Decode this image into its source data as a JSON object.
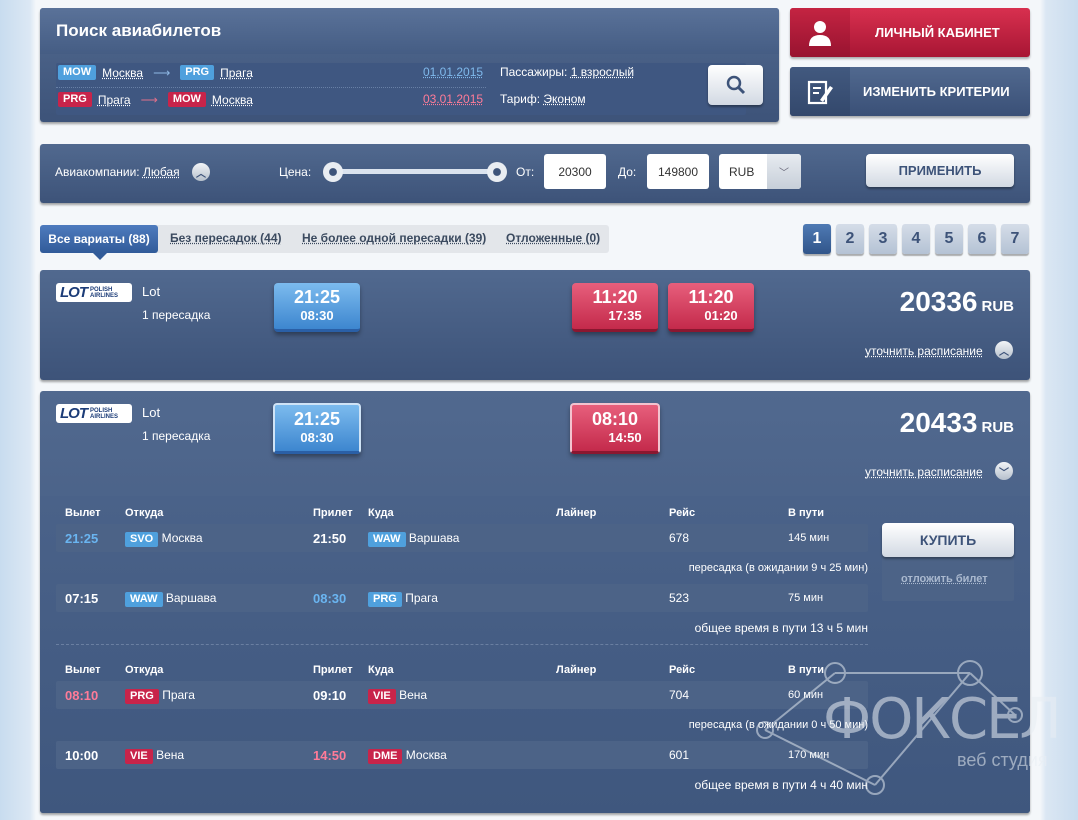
{
  "search": {
    "title": "Поиск авиабилетов",
    "leg1": {
      "from_code": "MOW",
      "from": "Москва",
      "to_code": "PRG",
      "to": "Прага",
      "date": "01.01.2015"
    },
    "leg2": {
      "from_code": "PRG",
      "from": "Прага",
      "to_code": "MOW",
      "to": "Москва",
      "date": "03.01.2015"
    },
    "passengers_label": "Пассажиры:",
    "passengers_value": "1 взрослый",
    "tariff_label": "Тариф:",
    "tariff_value": "Эконом"
  },
  "actions": {
    "cabinet": "ЛИЧНЫЙ КАБИНЕТ",
    "change": "ИЗМЕНИТЬ КРИТЕРИИ"
  },
  "filter": {
    "airlines_label": "Авиакомпании:",
    "airlines_value": "Любая",
    "price_label": "Цена:",
    "from_label": "От:",
    "from_value": "20300",
    "to_label": "До:",
    "to_value": "149800",
    "currency": "RUB",
    "apply": "ПРИМЕНИТЬ",
    "slider_min_fraction": 0,
    "slider_max_fraction": 1
  },
  "tabs": [
    "Все вариаты (88)",
    "Без пересадок (44)",
    "Не более одной пересадки (39)",
    "Отложенные (0)"
  ],
  "pages": [
    "1",
    "2",
    "3",
    "4",
    "5",
    "6",
    "7"
  ],
  "results": [
    {
      "airline_logo": "LOT",
      "airline_sub": "POLISH AIRLINES",
      "airline": "Lot",
      "stops": "1 пересадка",
      "out": {
        "dep": "21:25",
        "arr": "08:30"
      },
      "ret1": {
        "dep": "11:20",
        "arr": "17:35"
      },
      "ret2": {
        "dep": "11:20",
        "arr": "01:20"
      },
      "price": "20336",
      "currency": "RUB",
      "schedule_link": "уточнить расписание"
    },
    {
      "airline_logo": "LOT",
      "airline_sub": "POLISH AIRLINES",
      "airline": "Lot",
      "stops": "1 пересадка",
      "out": {
        "dep": "21:25",
        "arr": "08:30"
      },
      "ret": {
        "dep": "08:10",
        "arr": "14:50"
      },
      "price": "20433",
      "currency": "RUB",
      "schedule_link": "уточнить расписание"
    }
  ],
  "details": {
    "headers": {
      "dep": "Вылет",
      "from": "Откуда",
      "arr": "Прилет",
      "to": "Куда",
      "plane": "Лайнер",
      "flight": "Рейс",
      "dur": "В пути"
    },
    "out_rows": [
      {
        "dep": "21:25",
        "from_code": "SVO",
        "from": "Москва",
        "arr": "21:50",
        "to_code": "WAW",
        "to": "Варшава",
        "flight": "678",
        "dur": "145 мин"
      },
      {
        "dep": "07:15",
        "from_code": "WAW",
        "from": "Варшава",
        "arr": "08:30",
        "to_code": "PRG",
        "to": "Прага",
        "flight": "523",
        "dur": "75 мин"
      }
    ],
    "out_layover": "пересадка (в ожидании 9 ч 25 мин)",
    "out_total": "общее время в пути 13 ч 5 мин",
    "ret_rows": [
      {
        "dep": "08:10",
        "from_code": "PRG",
        "from": "Прага",
        "arr": "09:10",
        "to_code": "VIE",
        "to": "Вена",
        "flight": "704",
        "dur": "60 мин"
      },
      {
        "dep": "10:00",
        "from_code": "VIE",
        "from": "Вена",
        "arr": "14:50",
        "to_code": "DME",
        "to": "Москва",
        "flight": "601",
        "dur": "170 мин"
      }
    ],
    "ret_layover": "пересадка (в ожидании 0 ч 50 мин)",
    "ret_total": "общее время в пути 4 ч 40 мин",
    "buy": "КУПИТЬ",
    "defer": "отложить билет"
  },
  "watermark": {
    "name": "ФОКСЕЛ",
    "sub": "веб студия"
  }
}
